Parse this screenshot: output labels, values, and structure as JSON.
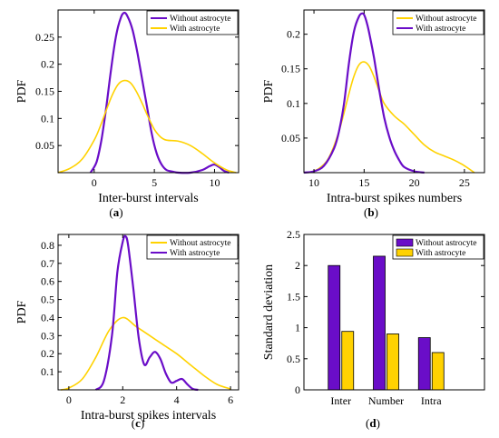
{
  "colors": {
    "purple": "#6a0dc8",
    "yellow": "#ffd200",
    "axis": "#000000"
  },
  "chart_data": [
    {
      "id": "a",
      "type": "line",
      "caption": "a",
      "xlabel": "Inter-burst intervals",
      "ylabel": "PDF",
      "xlim": [
        -3,
        12
      ],
      "ylim": [
        0,
        0.3
      ],
      "xticks": [
        0,
        5,
        10
      ],
      "yticks": [
        0.05,
        0.1,
        0.15,
        0.2,
        0.25
      ],
      "ytick_labels": [
        "0.05",
        "0.1",
        "0.15",
        "0.2",
        "0.25"
      ],
      "legend": [
        "Without astrocyte",
        "With astrocyte"
      ],
      "legend_position": "top-right",
      "series": [
        {
          "name": "Without astrocyte",
          "color": "#6a0dc8",
          "x": [
            -0.3,
            0.2,
            0.6,
            1.0,
            1.4,
            1.8,
            2.2,
            2.5,
            2.8,
            3.2,
            3.6,
            4.0,
            4.4,
            4.8,
            5.2,
            5.6,
            6.0,
            6.5,
            7.0,
            8.0,
            9.0,
            9.6,
            10.0,
            10.4,
            10.8,
            11.2
          ],
          "y": [
            0.0,
            0.02,
            0.06,
            0.12,
            0.19,
            0.25,
            0.285,
            0.295,
            0.287,
            0.262,
            0.22,
            0.17,
            0.12,
            0.07,
            0.035,
            0.015,
            0.005,
            0.002,
            0.0,
            0.0,
            0.005,
            0.012,
            0.015,
            0.01,
            0.003,
            0.0
          ]
        },
        {
          "name": "With astrocyte",
          "color": "#ffd200",
          "x": [
            -3.0,
            -2.0,
            -1.0,
            0.0,
            0.5,
            1.0,
            1.5,
            2.0,
            2.5,
            3.0,
            3.5,
            4.0,
            4.5,
            5.0,
            5.5,
            6.0,
            7.0,
            8.0,
            9.0,
            10.0,
            11.0,
            11.8
          ],
          "y": [
            0.0,
            0.008,
            0.025,
            0.06,
            0.085,
            0.115,
            0.143,
            0.163,
            0.17,
            0.166,
            0.15,
            0.127,
            0.102,
            0.08,
            0.066,
            0.06,
            0.058,
            0.05,
            0.035,
            0.018,
            0.005,
            0.0
          ]
        }
      ]
    },
    {
      "id": "b",
      "type": "line",
      "caption": "b",
      "xlabel": "Intra-burst spikes numbers",
      "ylabel": "PDF",
      "xlim": [
        9,
        27
      ],
      "ylim": [
        0,
        0.235
      ],
      "xticks": [
        10,
        15,
        20,
        25
      ],
      "yticks": [
        0.05,
        0.1,
        0.15,
        0.2
      ],
      "ytick_labels": [
        "0.05",
        "0.1",
        "0.15",
        "0.2"
      ],
      "legend": [
        "Without astrocyte",
        "With astrocyte"
      ],
      "legend_position": "top-right",
      "series": [
        {
          "name": "Without astrocyte",
          "color": "#ffd200",
          "x": [
            9.5,
            10.5,
            11.5,
            12.5,
            13.5,
            14.0,
            14.5,
            15.0,
            15.5,
            16.0,
            16.5,
            17.0,
            18.0,
            19.0,
            20.0,
            21.0,
            22.0,
            23.0,
            24.0,
            25.0,
            26.0
          ],
          "y": [
            0.0,
            0.006,
            0.022,
            0.06,
            0.115,
            0.14,
            0.156,
            0.16,
            0.154,
            0.138,
            0.118,
            0.1,
            0.082,
            0.07,
            0.055,
            0.04,
            0.03,
            0.024,
            0.018,
            0.01,
            0.0
          ]
        },
        {
          "name": "With astrocyte",
          "color": "#6a0dc8",
          "x": [
            9.0,
            10.0,
            11.0,
            12.0,
            12.5,
            13.0,
            13.5,
            14.0,
            14.5,
            14.8,
            15.0,
            15.3,
            15.6,
            16.0,
            16.5,
            17.0,
            17.5,
            18.0,
            18.5,
            19.0,
            20.0,
            21.0
          ],
          "y": [
            0.0,
            0.002,
            0.01,
            0.035,
            0.06,
            0.1,
            0.16,
            0.205,
            0.226,
            0.23,
            0.228,
            0.215,
            0.195,
            0.165,
            0.12,
            0.08,
            0.052,
            0.032,
            0.018,
            0.008,
            0.002,
            0.0
          ]
        }
      ]
    },
    {
      "id": "c",
      "type": "line",
      "caption": "c",
      "xlabel": "Intra-burst spikes intervals",
      "ylabel": "PDF",
      "xlim": [
        -0.4,
        6.3
      ],
      "ylim": [
        0,
        0.86
      ],
      "xticks": [
        0,
        2,
        4,
        6
      ],
      "yticks": [
        0.1,
        0.2,
        0.3,
        0.4,
        0.5,
        0.6,
        0.7,
        0.8
      ],
      "ytick_labels": [
        "0.1",
        "0.2",
        "0.3",
        "0.4",
        "0.5",
        "0.6",
        "0.7",
        "0.8"
      ],
      "legend": [
        "Without astrocyte",
        "With astrocyte"
      ],
      "legend_position": "top-right",
      "series": [
        {
          "name": "Without astrocyte",
          "color": "#ffd200",
          "x": [
            -0.3,
            0.0,
            0.5,
            1.0,
            1.5,
            2.0,
            2.5,
            3.0,
            3.5,
            4.0,
            4.5,
            5.0,
            5.5,
            6.0
          ],
          "y": [
            0.0,
            0.01,
            0.06,
            0.18,
            0.33,
            0.4,
            0.35,
            0.3,
            0.25,
            0.2,
            0.14,
            0.08,
            0.03,
            0.005
          ]
        },
        {
          "name": "With astrocyte",
          "color": "#6a0dc8",
          "x": [
            1.0,
            1.3,
            1.6,
            1.8,
            2.0,
            2.1,
            2.2,
            2.4,
            2.6,
            2.8,
            3.0,
            3.2,
            3.4,
            3.6,
            3.8,
            4.0,
            4.2,
            4.4,
            4.6,
            4.8
          ],
          "y": [
            0.0,
            0.05,
            0.3,
            0.65,
            0.82,
            0.85,
            0.8,
            0.55,
            0.28,
            0.14,
            0.18,
            0.21,
            0.17,
            0.09,
            0.04,
            0.05,
            0.06,
            0.03,
            0.005,
            0.0
          ]
        }
      ]
    },
    {
      "id": "d",
      "type": "bar",
      "caption": "d",
      "xlabel": "",
      "ylabel": "Standard deviation",
      "categories": [
        "Inter",
        "Number",
        "Intra"
      ],
      "ylim": [
        0,
        2.5
      ],
      "yticks": [
        0,
        0.5,
        1,
        1.5,
        2,
        2.5
      ],
      "ytick_labels": [
        "0",
        "0.5",
        "1",
        "1.5",
        "2",
        "2.5"
      ],
      "legend": [
        "Without astrocyte",
        "With astrocyte"
      ],
      "legend_position": "top-right",
      "series": [
        {
          "name": "Without astrocyte",
          "color": "#6a0dc8",
          "values": [
            2.0,
            2.15,
            0.84
          ]
        },
        {
          "name": "With astrocyte",
          "color": "#ffd200",
          "values": [
            0.94,
            0.9,
            0.6
          ]
        }
      ]
    }
  ]
}
